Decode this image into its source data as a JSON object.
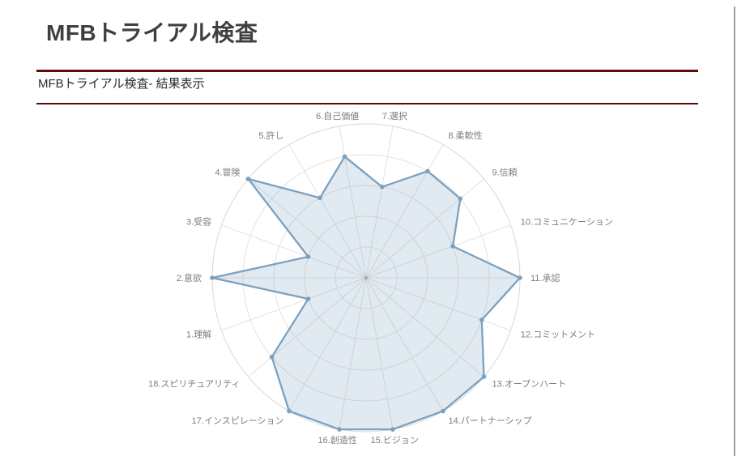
{
  "header": {
    "page_title": "MFBトライアル検査",
    "section_title": "MFBトライアル検査- 結果表示"
  },
  "chart_data": {
    "type": "radar",
    "title": "",
    "categories": [
      "1.理解",
      "2.意欲",
      "3.受容",
      "4.冒険",
      "5.許し",
      "6.自己価値",
      "7.選択",
      "8.柔軟性",
      "9.信頼",
      "10.コミュニケーション",
      "11.承認",
      "12.コミットメント",
      "13.オープンハート",
      "14.パートナーシップ",
      "15.ビジョン",
      "16.創造性",
      "17.インスピレーション",
      "18.スピリチュアリティ"
    ],
    "values": [
      2,
      5,
      2,
      5,
      3,
      4,
      3,
      4,
      4,
      3,
      5,
      4,
      5,
      5,
      5,
      5,
      5,
      4
    ],
    "r_axis": {
      "min": 0,
      "max": 5,
      "rings": 5
    },
    "start_angle_deg": 200,
    "angle_step_deg": -20,
    "grid": true,
    "legend": false
  },
  "colors": {
    "rule": "#5c0b0b",
    "title_text": "#3f3f3f",
    "subtitle_text": "#2b2b2b",
    "series_line": "#7ba1c0",
    "series_fill": "#7ba1c0",
    "series_fill_opacity": 0.22,
    "grid_line": "#e2e2e2",
    "outer_ring": "#d8d8d8",
    "axis_label": "#7e7e7e",
    "center_dot": "#9a9a9a",
    "window_border": "#a0a0a0"
  }
}
